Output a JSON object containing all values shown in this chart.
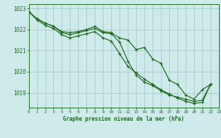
{
  "title": "Graphe pression niveau de la mer (hPa)",
  "bg_color": "#ceeaea",
  "grid_color": "#aacccc",
  "line_color": "#1e6b1e",
  "xlim": [
    0,
    23
  ],
  "ylim": [
    1018.3,
    1023.2
  ],
  "yticks": [
    1019,
    1020,
    1021,
    1022,
    1023
  ],
  "xticks": [
    0,
    1,
    2,
    3,
    4,
    5,
    6,
    7,
    8,
    9,
    10,
    11,
    12,
    13,
    14,
    15,
    16,
    17,
    18,
    19,
    20,
    21,
    22,
    23
  ],
  "series1": [
    1022.85,
    1022.5,
    1022.3,
    1022.15,
    1021.9,
    1021.85,
    1021.9,
    1022.0,
    1022.15,
    1021.9,
    1021.85,
    1021.6,
    1021.5,
    1021.05,
    1021.15,
    1020.6,
    1020.4,
    1019.6,
    1019.4,
    1018.9,
    1018.7,
    1019.15,
    1019.4
  ],
  "series2": [
    1022.85,
    1022.5,
    1022.3,
    1022.15,
    1021.85,
    1021.75,
    1021.85,
    1021.95,
    1022.05,
    1021.85,
    1021.8,
    1021.4,
    1020.5,
    1019.85,
    1019.5,
    1019.35,
    1019.1,
    1018.9,
    1018.8,
    1018.7,
    1018.6,
    1018.65,
    1019.4
  ],
  "series3": [
    1022.85,
    1022.45,
    1022.2,
    1022.05,
    1021.75,
    1021.6,
    1021.7,
    1021.8,
    1021.9,
    1021.6,
    1021.45,
    1020.85,
    1020.25,
    1019.95,
    1019.65,
    1019.4,
    1019.15,
    1018.95,
    1018.75,
    1018.6,
    1018.5,
    1018.55,
    1019.4
  ]
}
